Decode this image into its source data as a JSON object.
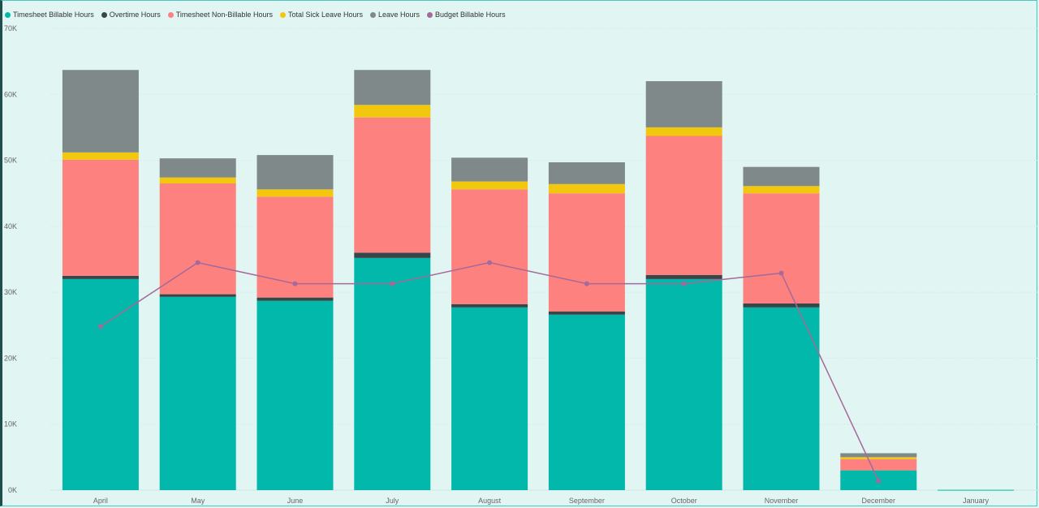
{
  "chart_data": {
    "type": "bar",
    "stacked": true,
    "categories": [
      "April",
      "May",
      "June",
      "July",
      "August",
      "September",
      "October",
      "November",
      "December",
      "January"
    ],
    "series": [
      {
        "name": "Timesheet Billable Hours",
        "color": "#01b8aa",
        "values": [
          32000,
          29300,
          28700,
          35200,
          27700,
          26600,
          32000,
          27700,
          3000,
          50
        ]
      },
      {
        "name": "Overtime Hours",
        "color": "#374649",
        "values": [
          500,
          400,
          500,
          800,
          500,
          500,
          600,
          600,
          0,
          0
        ]
      },
      {
        "name": "Timesheet Non-Billable Hours",
        "color": "#fd817e",
        "values": [
          17600,
          16800,
          15300,
          20500,
          17400,
          17900,
          21100,
          16700,
          1700,
          0
        ]
      },
      {
        "name": "Total Sick Leave Hours",
        "color": "#f2c80f",
        "values": [
          1100,
          900,
          1100,
          1900,
          1200,
          1400,
          1300,
          1100,
          300,
          0
        ]
      },
      {
        "name": "Leave Hours",
        "color": "#7f898a",
        "values": [
          12500,
          2900,
          5200,
          5300,
          3600,
          3300,
          7000,
          2900,
          600,
          0
        ]
      }
    ],
    "line_series": [
      {
        "name": "Budget Billable Hours",
        "color": "#a66999",
        "values": [
          24800,
          34500,
          31300,
          31300,
          34500,
          31300,
          31300,
          32900,
          1400,
          null
        ]
      }
    ],
    "y_ticks": [
      "0K",
      "10K",
      "20K",
      "30K",
      "40K",
      "50K",
      "60K",
      "70K"
    ],
    "ylim": [
      0,
      70000
    ],
    "legend_position": "top-left",
    "grid": true
  }
}
